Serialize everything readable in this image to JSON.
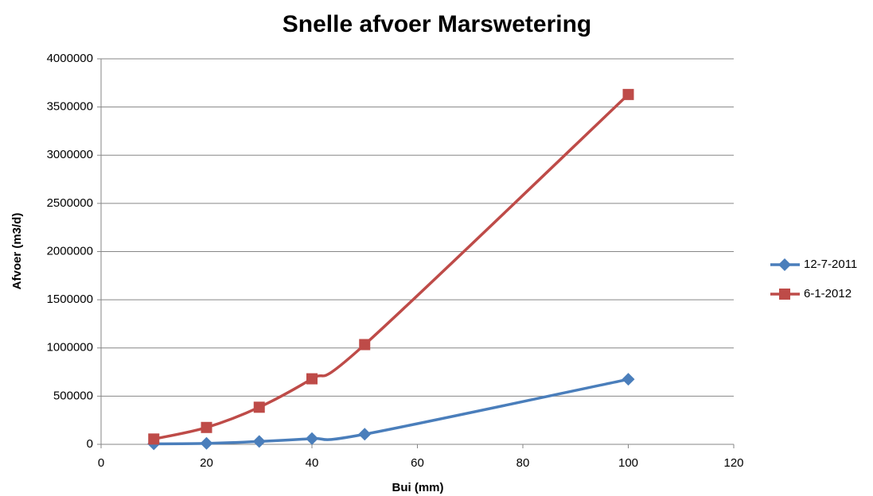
{
  "chart_data": {
    "type": "line",
    "title": "Snelle afvoer Marswetering",
    "x_label": "Bui (mm)",
    "y_label": "Afvoer (m3/d)",
    "x": [
      10,
      20,
      30,
      40,
      50,
      100
    ],
    "series": [
      {
        "name": "12-7-2011",
        "color": "#4a7ebb",
        "marker": "diamond",
        "values": [
          5000,
          10000,
          30000,
          60000,
          105000,
          675000
        ]
      },
      {
        "name": "6-1-2012",
        "color": "#be4b48",
        "marker": "square",
        "values": [
          55000,
          175000,
          385000,
          680000,
          1035000,
          3630000
        ]
      }
    ],
    "xlim": [
      0,
      120
    ],
    "xticks": [
      0,
      20,
      40,
      60,
      80,
      100,
      120
    ],
    "ylim": [
      0,
      4000000
    ],
    "yticks": [
      0,
      500000,
      1000000,
      1500000,
      2000000,
      2500000,
      3000000,
      3500000,
      4000000
    ],
    "grid": true,
    "smooth": true,
    "legend": "right"
  }
}
